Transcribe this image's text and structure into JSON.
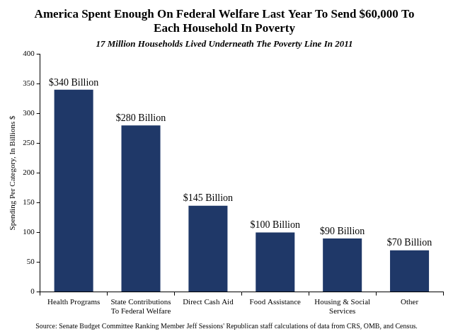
{
  "chart_data": {
    "type": "bar",
    "title": "America Spent Enough On Federal Welfare Last Year To Send $60,000 To Each Household In Poverty",
    "subtitle": "17 Million Households Lived Underneath The Poverty Line In 2011",
    "y_label": "Spending Per Category, In Billions $",
    "source": "Source: Senate Budget Committee Ranking Member Jeff Sessions' Republican staff calculations of data from CRS, OMB, and Census.",
    "categories": [
      "Health Programs",
      "State Contributions To Federal Welfare",
      "Direct Cash Aid",
      "Food Assistance",
      "Housing & Social Services",
      "Other"
    ],
    "values": [
      340,
      280,
      145,
      100,
      90,
      70
    ],
    "value_labels": [
      "$340 Billion",
      "$280 Billion",
      "$145 Billion",
      "$100 Billion",
      "$90 Billion",
      "$70 Billion"
    ],
    "data_labels": true,
    "color": "#1f3868",
    "ylim": [
      0,
      400
    ],
    "yticks": [
      0,
      50,
      100,
      150,
      200,
      250,
      300,
      350,
      400
    ],
    "grid": false
  }
}
